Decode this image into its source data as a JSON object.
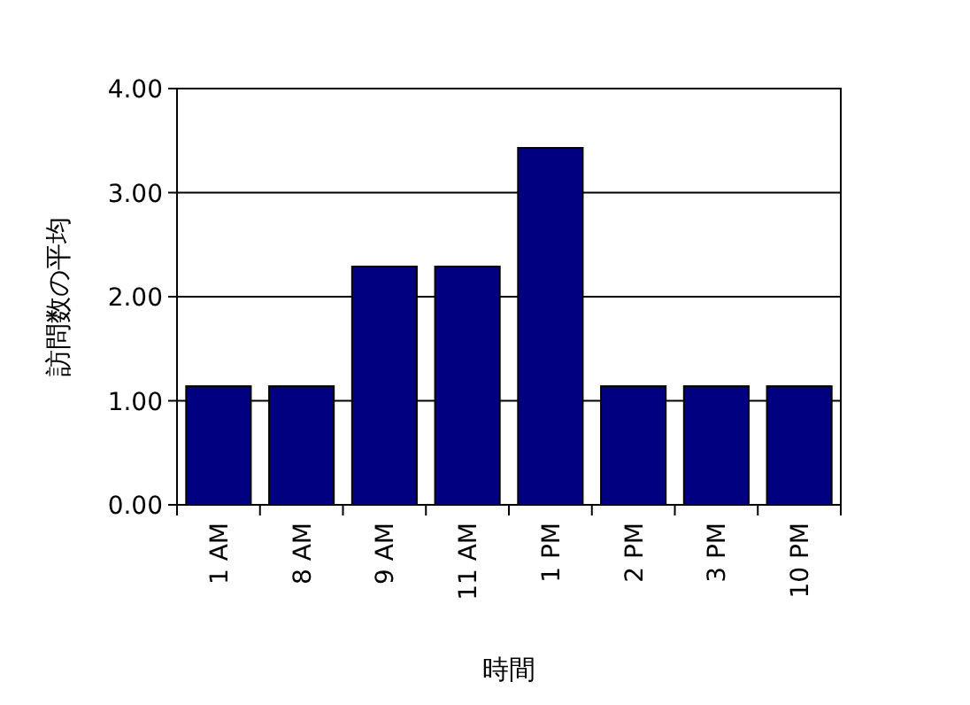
{
  "chart_data": {
    "type": "bar",
    "xlabel": "時間",
    "ylabel": "訪問数の平均",
    "categories": [
      "1 AM",
      "8 AM",
      "9 AM",
      "11 AM",
      "1 PM",
      "2 PM",
      "3 PM",
      "10 PM"
    ],
    "values": [
      1.14,
      1.14,
      2.29,
      2.29,
      3.43,
      1.14,
      1.14,
      1.14
    ],
    "color": "#000080",
    "ylim": [
      0,
      4
    ],
    "yticks": [
      {
        "value": 0,
        "label": "0.00"
      },
      {
        "value": 1,
        "label": "1.00"
      },
      {
        "value": 2,
        "label": "2.00"
      },
      {
        "value": 3,
        "label": "3.00"
      },
      {
        "value": 4,
        "label": "4.00"
      }
    ],
    "grid": "y"
  }
}
